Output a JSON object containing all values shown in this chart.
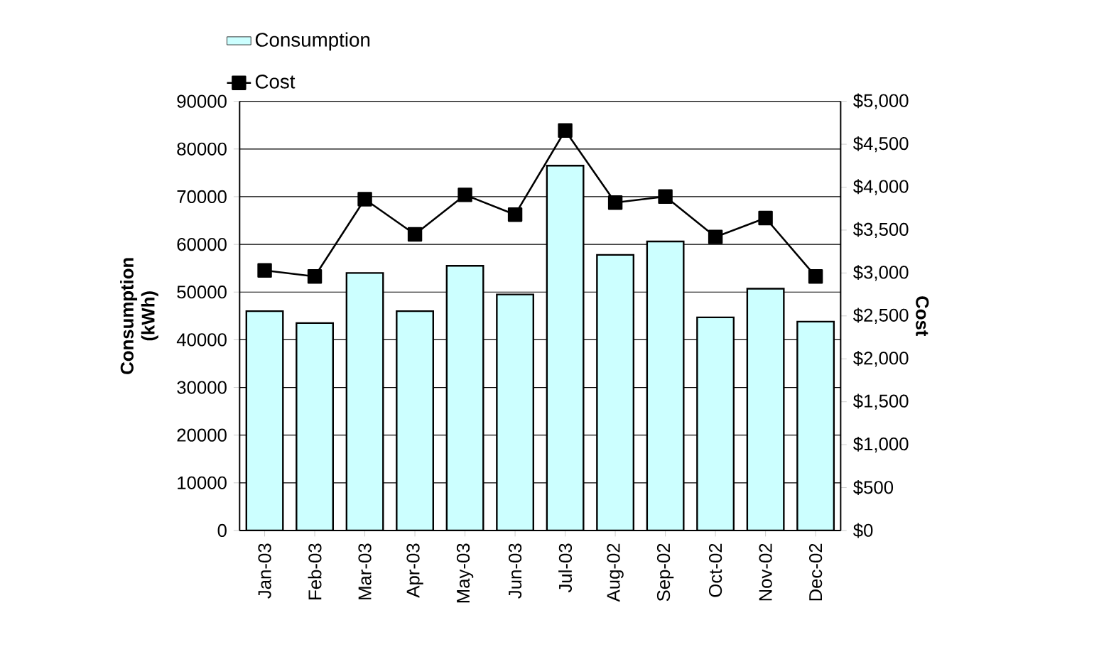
{
  "chart_data": {
    "type": "bar",
    "categories": [
      "Jan-03",
      "Feb-03",
      "Mar-03",
      "Apr-03",
      "May-03",
      "Jun-03",
      "Jul-03",
      "Aug-02",
      "Sep-02",
      "Oct-02",
      "Nov-02",
      "Dec-02"
    ],
    "series": [
      {
        "name": "Consumption",
        "color": "#ccffff",
        "values": [
          46000,
          43500,
          54000,
          46000,
          55500,
          49500,
          76500,
          57800,
          60600,
          44700,
          50700,
          43800
        ]
      },
      {
        "name": "Cost",
        "type": "line",
        "axis": "y2",
        "color": "#000000",
        "marker": "square",
        "values": [
          3030,
          2960,
          3860,
          3450,
          3910,
          3680,
          4660,
          3820,
          3890,
          3420,
          3640,
          2960
        ]
      }
    ],
    "ylabel": "Consumption (kWh)",
    "y2label": "Cost",
    "ylim": [
      0,
      90000
    ],
    "yticks": [
      0,
      10000,
      20000,
      30000,
      40000,
      50000,
      60000,
      70000,
      80000,
      90000
    ],
    "y2lim": [
      0,
      5000
    ],
    "y2ticks": [
      {
        "value": 0,
        "label": "$0"
      },
      {
        "value": 500,
        "label": "$500"
      },
      {
        "value": 1000,
        "label": "$1,000"
      },
      {
        "value": 1500,
        "label": "$1,500"
      },
      {
        "value": 2000,
        "label": "$2,000"
      },
      {
        "value": 2500,
        "label": "$2,500"
      },
      {
        "value": 3000,
        "label": "$3,000"
      },
      {
        "value": 3500,
        "label": "$3,500"
      },
      {
        "value": 4000,
        "label": "$4,000"
      },
      {
        "value": 4500,
        "label": "$4,500"
      },
      {
        "value": 5000,
        "label": "$5,000"
      }
    ],
    "grid": "y",
    "legend": "top left"
  }
}
